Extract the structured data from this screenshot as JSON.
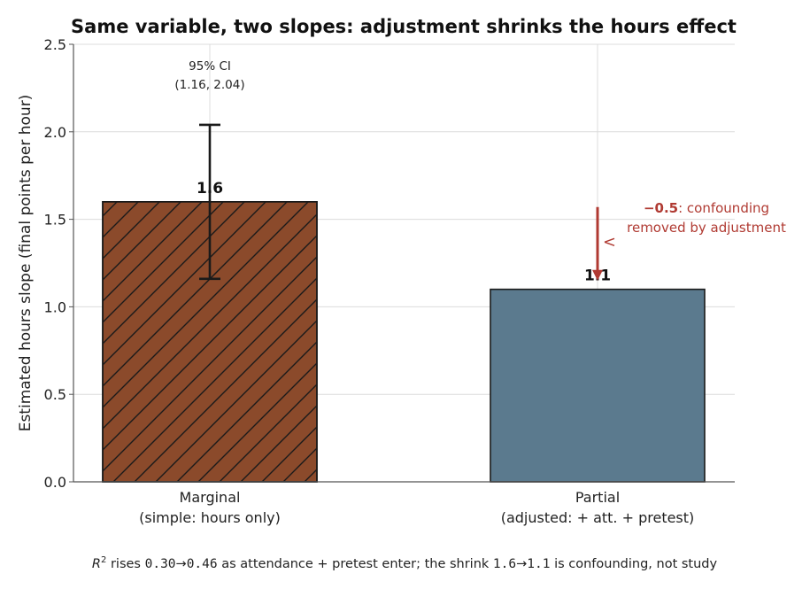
{
  "chart_data": {
    "type": "bar",
    "title": "Same variable, two slopes: adjustment shrinks the hours effect",
    "ylabel": "Estimated hours slope (final points per hour)",
    "xlabel": "",
    "ylim": [
      0,
      2.5
    ],
    "yticks": [
      0.0,
      0.5,
      1.0,
      1.5,
      2.0,
      2.5
    ],
    "ytick_labels": [
      "0.0",
      "0.5",
      "1.0",
      "1.5",
      "2.0",
      "2.5"
    ],
    "grid": true,
    "categories": [
      {
        "line1": "Marginal",
        "line2": "(simple: hours only)"
      },
      {
        "line1": "Partial",
        "line2": "(adjusted: + att. + pretest)"
      }
    ],
    "values": [
      1.6,
      1.1
    ],
    "value_labels": [
      "1.6",
      "1.1"
    ],
    "bar_colors": [
      "#8b4a2b",
      "#5b7a8e"
    ],
    "hatched": [
      true,
      false
    ],
    "error_bar": {
      "category_index": 0,
      "low": 1.16,
      "high": 2.04
    },
    "ci_annotation": {
      "line1": "95% CI",
      "line2": "(1.16, 2.04)"
    },
    "arrow_annotation": {
      "from": 1.57,
      "to": 1.17,
      "color": "#b03a32",
      "bold_part": "−0.5",
      "rest_line1": ": confounding",
      "line2": "removed by adjustment"
    },
    "footnote": {
      "r_symbol": "R",
      "superscript": "2",
      "part1": " rises ",
      "from_r2": "0.30",
      "arrow": "→",
      "to_r2": "0.46",
      "part2": " as attendance + pretest enter; the shrink ",
      "from_slope": "1.6",
      "to_slope": "1.1",
      "part3": " is confounding, not study"
    }
  }
}
